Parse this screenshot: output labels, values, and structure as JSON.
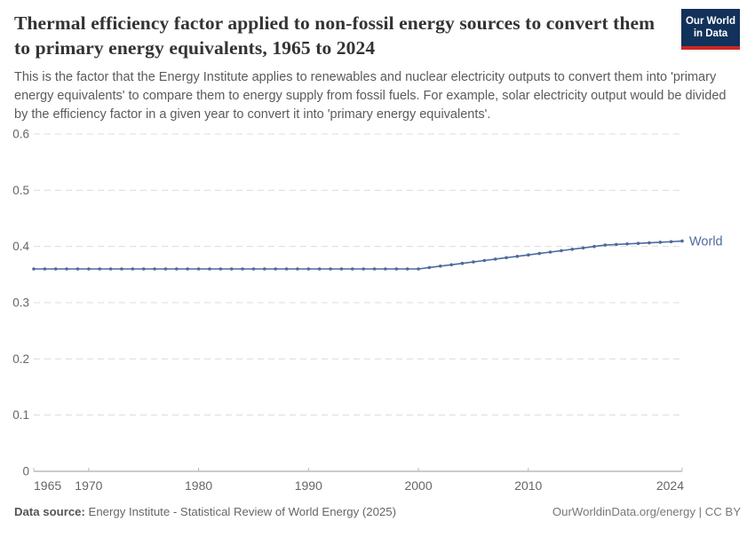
{
  "header": {
    "title": "Thermal efficiency factor applied to non-fossil energy sources to convert them to primary energy equivalents, 1965 to 2024",
    "subtitle": "This is the factor that the Energy Institute applies to renewables and nuclear electricity outputs to convert them into 'primary energy equivalents' to compare them to energy supply from fossil fuels. For example, solar electricity output would be divided by the efficiency factor in a given year to convert it into 'primary energy equivalents'.",
    "logo": {
      "line1": "Our World",
      "line2": "in Data",
      "bg_color": "#12315b",
      "bar_color": "#cb2821"
    }
  },
  "chart_data": {
    "type": "line",
    "title": "Thermal efficiency factor applied to non-fossil energy sources to convert them to primary energy equivalents, 1965 to 2024",
    "xlabel": "",
    "ylabel": "",
    "xlim": [
      1965,
      2024
    ],
    "ylim": [
      0,
      0.6
    ],
    "grid": "dashed-horizontal",
    "legend_position": "end-of-line",
    "x_ticks": [
      1965,
      1970,
      1980,
      1990,
      2000,
      2010,
      2024
    ],
    "y_ticks": [
      0,
      0.1,
      0.2,
      0.3,
      0.4,
      0.5,
      0.6
    ],
    "y_tick_labels": [
      "0",
      "0.1",
      "0.2",
      "0.3",
      "0.4",
      "0.5",
      "0.6"
    ],
    "colors": {
      "line": "#4c6b9e",
      "gridline": "#dcdcdc",
      "axis": "#9a9a9a",
      "tick_mark": "#b8b8b8",
      "tick_label": "#666666"
    },
    "x": [
      1965,
      1966,
      1967,
      1968,
      1969,
      1970,
      1971,
      1972,
      1973,
      1974,
      1975,
      1976,
      1977,
      1978,
      1979,
      1980,
      1981,
      1982,
      1983,
      1984,
      1985,
      1986,
      1987,
      1988,
      1989,
      1990,
      1991,
      1992,
      1993,
      1994,
      1995,
      1996,
      1997,
      1998,
      1999,
      2000,
      2001,
      2002,
      2003,
      2004,
      2005,
      2006,
      2007,
      2008,
      2009,
      2010,
      2011,
      2012,
      2013,
      2014,
      2015,
      2016,
      2017,
      2018,
      2019,
      2020,
      2021,
      2022,
      2023,
      2024
    ],
    "series": [
      {
        "name": "World",
        "color": "#4c6b9e",
        "values": [
          0.36,
          0.36,
          0.36,
          0.36,
          0.36,
          0.36,
          0.36,
          0.36,
          0.36,
          0.36,
          0.36,
          0.36,
          0.36,
          0.36,
          0.36,
          0.36,
          0.36,
          0.36,
          0.36,
          0.36,
          0.36,
          0.36,
          0.36,
          0.36,
          0.36,
          0.36,
          0.36,
          0.36,
          0.36,
          0.36,
          0.36,
          0.36,
          0.36,
          0.36,
          0.36,
          0.36,
          0.3625,
          0.365,
          0.3675,
          0.37,
          0.3725,
          0.375,
          0.3775,
          0.38,
          0.3825,
          0.385,
          0.3875,
          0.39,
          0.3925,
          0.395,
          0.3975,
          0.4,
          0.4025,
          0.4035,
          0.4045,
          0.4055,
          0.4065,
          0.4075,
          0.4085,
          0.4095
        ]
      }
    ]
  },
  "footer": {
    "source_label": "Data source:",
    "source_text": " Energy Institute - Statistical Review of World Energy (2025)",
    "right_text": "OurWorldinData.org/energy | CC BY"
  }
}
